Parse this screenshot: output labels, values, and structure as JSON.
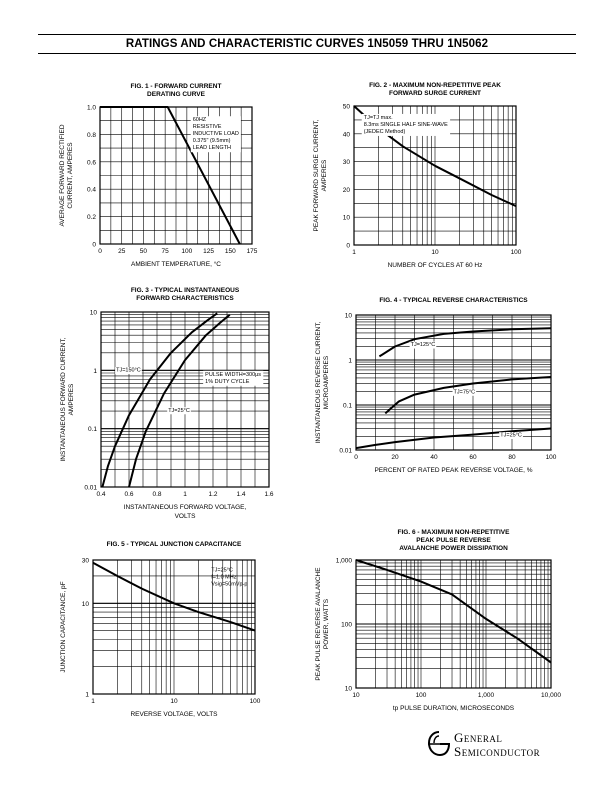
{
  "page": {
    "title": "RATINGS AND CHARACTERISTIC CURVES 1N5059 THRU 1N5062"
  },
  "logo": {
    "line1": "General",
    "line2": "Semiconductor"
  },
  "chart_data": [
    {
      "id": "fig1",
      "type": "line",
      "title": [
        "FIG. 1 -  FORWARD CURRENT",
        "DERATING CURVE"
      ],
      "xlabel": "AMBIENT TEMPERATURE, °C",
      "ylabel": [
        "AVERAGE FORWARD RECTIFIED",
        "CURRENT, AMPERES"
      ],
      "xscale": "linear",
      "yscale": "linear",
      "xlim": [
        0,
        175
      ],
      "ylim": [
        0,
        1.0
      ],
      "xticks": [
        0,
        25,
        50,
        75,
        100,
        125,
        150,
        175
      ],
      "yticks": [
        0,
        0.2,
        0.4,
        0.6,
        0.8,
        1.0
      ],
      "ytick_labels": [
        "0",
        "0.2",
        "0.4",
        "0.6",
        "0.8",
        "1.0"
      ],
      "grid": true,
      "annotations": [
        {
          "lines": [
            "60HZ",
            "RESISTIVE",
            "INDUCTIVE LOAD",
            "0.375\" (9.5mm)",
            "LEAD LENGTH"
          ],
          "placement": "top-right"
        }
      ],
      "series": [
        {
          "x": [
            0,
            78,
            161
          ],
          "y": [
            1.0,
            1.0,
            0
          ]
        }
      ]
    },
    {
      "id": "fig2",
      "type": "line",
      "title": [
        "FIG. 2 - MAXIMUM NON-REPETITIVE PEAK",
        "FORWARD SURGE CURRENT"
      ],
      "xlabel": "NUMBER OF CYCLES AT 60 Hz",
      "ylabel": [
        "PEAK FORWARD SURGE CURRENT,",
        "AMPERES"
      ],
      "xscale": "log",
      "yscale": "linear",
      "xlim": [
        1,
        100
      ],
      "ylim": [
        0,
        50
      ],
      "xticks": [
        1,
        10,
        100
      ],
      "yticks": [
        0,
        10,
        20,
        30,
        40,
        50
      ],
      "grid": true,
      "annotations": [
        {
          "lines": [
            "TJ=TJ max.",
            "8.3ms SINGLE HALF SINE-WAVE",
            "(JEDEC Method)"
          ],
          "placement": "top-right"
        }
      ],
      "series": [
        {
          "x": [
            1,
            2,
            4,
            10,
            20,
            50,
            100
          ],
          "y": [
            50,
            42,
            35.5,
            28.5,
            24,
            18,
            14
          ]
        }
      ]
    },
    {
      "id": "fig3",
      "type": "line",
      "title": [
        "FIG. 3 - TYPICAL INSTANTANEOUS",
        "FORWARD CHARACTERISTICS"
      ],
      "xlabel": [
        "INSTANTANEOUS FORWARD VOLTAGE,",
        "VOLTS"
      ],
      "ylabel": [
        "INSTANTANEOUS FORWARD CURRENT,",
        "AMPERES"
      ],
      "xscale": "linear",
      "yscale": "log",
      "xlim": [
        0.4,
        1.6
      ],
      "ylim": [
        0.01,
        10
      ],
      "xticks": [
        0.4,
        0.6,
        0.8,
        1.0,
        1.2,
        1.4,
        1.6
      ],
      "yticks": [
        0.01,
        0.1,
        1,
        10
      ],
      "ytick_labels": [
        "0.01",
        "0.1",
        "1",
        "10"
      ],
      "grid": true,
      "annotations": [
        {
          "lines": [
            "PULSE WIDTH=300μs",
            "1% DUTY CYCLE"
          ],
          "placement": "right"
        }
      ],
      "series": [
        {
          "name": "TJ=150°C",
          "x": [
            0.41,
            0.45,
            0.5,
            0.6,
            0.75,
            0.9,
            1.05,
            1.17,
            1.23
          ],
          "y": [
            0.01,
            0.023,
            0.05,
            0.17,
            0.7,
            2.0,
            4.5,
            7.5,
            9.5
          ]
        },
        {
          "name": "TJ=25°C",
          "x": [
            0.6,
            0.65,
            0.72,
            0.85,
            1.0,
            1.15,
            1.25,
            1.32
          ],
          "y": [
            0.01,
            0.03,
            0.09,
            0.4,
            1.5,
            4.0,
            6.5,
            9.0
          ]
        }
      ]
    },
    {
      "id": "fig4",
      "type": "line",
      "title": [
        "FIG. 4 - TYPICAL REVERSE  CHARACTERISTICS"
      ],
      "xlabel": "PERCENT OF RATED PEAK REVERSE VOLTAGE, %",
      "ylabel": [
        "INSTANTANEOUS REVERSE CURRENT,",
        "MICROAMPERES"
      ],
      "xscale": "linear",
      "yscale": "log",
      "xlim": [
        0,
        100
      ],
      "ylim": [
        0.01,
        10
      ],
      "xticks": [
        0,
        20,
        40,
        60,
        80,
        100
      ],
      "yticks": [
        0.01,
        0.1,
        1,
        10
      ],
      "ytick_labels": [
        "0.01",
        "0.1",
        "1",
        "10"
      ],
      "grid": true,
      "series": [
        {
          "name": "TJ=125°C",
          "x": [
            12,
            20,
            30,
            45,
            60,
            80,
            100
          ],
          "y": [
            1.2,
            2.0,
            2.9,
            3.8,
            4.3,
            4.8,
            5.1
          ]
        },
        {
          "name": "TJ=75°C",
          "x": [
            15,
            22,
            30,
            45,
            60,
            80,
            100
          ],
          "y": [
            0.065,
            0.12,
            0.17,
            0.24,
            0.3,
            0.37,
            0.42
          ]
        },
        {
          "name": "TJ=25°C",
          "x": [
            0,
            10,
            20,
            40,
            60,
            80,
            100
          ],
          "y": [
            0.011,
            0.013,
            0.015,
            0.019,
            0.022,
            0.026,
            0.03
          ]
        }
      ]
    },
    {
      "id": "fig5",
      "type": "line",
      "title": [
        "FIG. 5 - TYPICAL JUNCTION CAPACITANCE"
      ],
      "xlabel": "REVERSE VOLTAGE, VOLTS",
      "ylabel": [
        "JUNCTION CAPACITANCE, pF"
      ],
      "xscale": "log",
      "yscale": "log",
      "xlim": [
        1,
        100
      ],
      "ylim": [
        1,
        30
      ],
      "xticks": [
        1,
        10,
        100
      ],
      "yticks": [
        1,
        10,
        30
      ],
      "ytick_labels": [
        "1",
        "10",
        "30"
      ],
      "grid": true,
      "annotations": [
        {
          "lines": [
            "TJ=25°C",
            "f=1.0 MHz",
            "Vsig=50mVp-p"
          ],
          "placement": "top-right"
        }
      ],
      "series": [
        {
          "x": [
            1,
            2,
            4,
            10,
            20,
            50,
            100
          ],
          "y": [
            28,
            20,
            14.5,
            10,
            8,
            6.2,
            5
          ]
        }
      ]
    },
    {
      "id": "fig6",
      "type": "line",
      "title": [
        "FIG. 6 - MAXIMUM NON-REPETITIVE",
        "PEAK PULSE REVERSE",
        "AVALANCHE POWER DISSIPATION"
      ],
      "xlabel": "tp PULSE DURATION, MICROSECONDS",
      "ylabel": [
        "PEAK PULSE REVERSE AVALANCHE",
        "POWER, WATTS"
      ],
      "xscale": "log",
      "yscale": "log",
      "xlim": [
        10,
        10000
      ],
      "ylim": [
        10,
        1000
      ],
      "xticks": [
        10,
        100,
        1000,
        10000
      ],
      "xtick_labels": [
        "10",
        "100",
        "1,000",
        "10,000"
      ],
      "yticks": [
        10,
        100,
        1000
      ],
      "ytick_labels": [
        "10",
        "100",
        "1,000"
      ],
      "grid": true,
      "series": [
        {
          "x": [
            10,
            30,
            100,
            300,
            1000,
            3000,
            10000
          ],
          "y": [
            1000,
            700,
            460,
            290,
            120,
            60,
            25
          ]
        }
      ]
    }
  ]
}
